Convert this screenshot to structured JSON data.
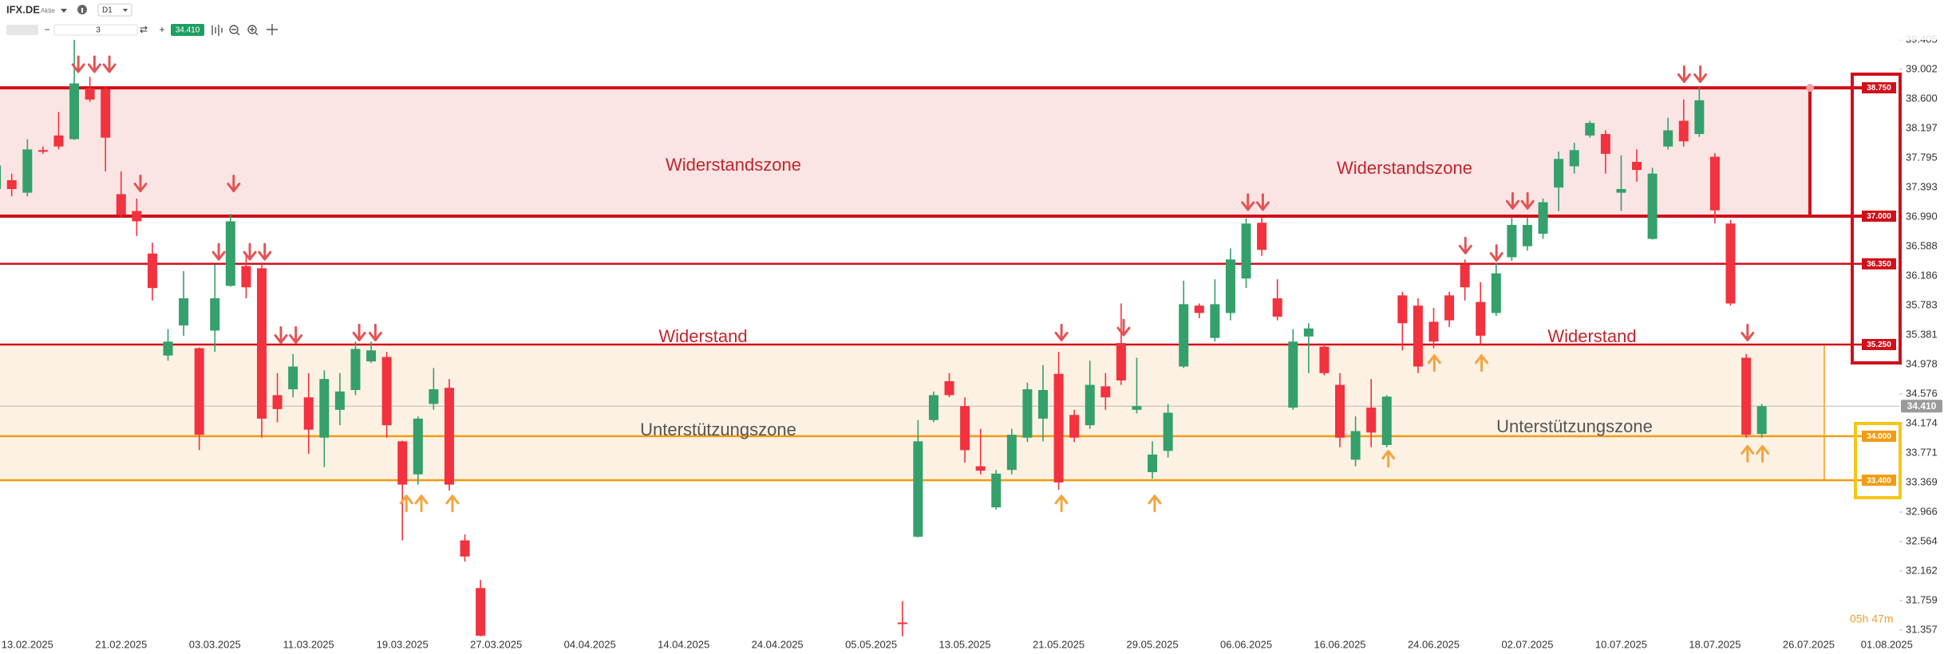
{
  "header": {
    "symbol": "IFX.DE",
    "type": "Aktie",
    "timeframe": "D1",
    "quantity": "3",
    "price": "34.410",
    "timer": "05h 47m"
  },
  "chart_data": {
    "type": "candlestick",
    "up_color": "#34a06b",
    "down_color": "#f2323e",
    "ylim": [
      31.27,
      39.947
    ],
    "yticks": [
      39.405,
      39.002,
      {
        "value": 38.6,
        "label": "38.600"
      },
      38.197,
      37.795,
      37.393,
      {
        "value": 36.99,
        "label": "36.990"
      },
      36.588,
      36.186,
      35.783,
      35.381,
      34.978,
      34.576,
      34.174,
      33.771,
      33.369,
      32.966,
      32.564,
      32.162,
      31.759,
      31.357
    ],
    "categories": [
      null,
      null,
      "13.02.2025",
      null,
      null,
      null,
      null,
      null,
      "21.02.2025",
      null,
      null,
      null,
      null,
      null,
      "03.03.2025",
      null,
      null,
      null,
      null,
      null,
      "11.03.2025",
      null,
      null,
      null,
      null,
      null,
      "19.03.2025",
      null,
      null,
      null,
      null,
      null,
      "27.03.2025",
      null,
      null,
      null,
      null,
      null,
      "04.04.2025",
      null,
      null,
      null,
      null,
      null,
      "14.04.2025",
      null,
      null,
      null,
      null,
      null,
      "24.04.2025",
      null,
      null,
      null,
      null,
      null,
      "05.05.2025",
      null,
      null,
      null,
      null,
      null,
      "13.05.2025",
      null,
      null,
      null,
      null,
      null,
      "21.05.2025",
      null,
      null,
      null,
      null,
      null,
      "29.05.2025",
      null,
      null,
      null,
      null,
      null,
      "06.06.2025",
      null,
      null,
      null,
      null,
      null,
      "16.06.2025",
      null,
      null,
      null,
      null,
      null,
      "24.06.2025",
      null,
      null,
      null,
      null,
      null,
      "02.07.2025",
      null,
      null,
      null,
      null,
      null,
      "10.07.2025",
      null,
      null,
      null,
      null,
      null,
      "18.07.2025",
      null,
      null,
      null,
      null,
      null,
      "26.07.2025",
      null,
      null,
      null,
      null,
      "01.08.2025"
    ],
    "open": [
      37.37,
      37.49,
      37.32,
      37.9,
      38.1,
      38.05,
      38.74,
      38.73,
      37.3,
      37.07,
      36.49,
      35.1,
      35.51,
      35.2,
      35.44,
      36.05,
      36.32,
      36.29,
      34.56,
      34.64,
      34.53,
      33.98,
      34.36,
      34.63,
      35.02,
      35.08,
      33.93,
      33.48,
      34.44,
      34.66,
      32.58,
      31.93,
      null,
      null,
      null,
      null,
      null,
      null,
      null,
      null,
      null,
      null,
      null,
      null,
      null,
      null,
      null,
      null,
      null,
      null,
      null,
      null,
      null,
      null,
      null,
      null,
      null,
      null,
      31.46,
      32.63,
      34.22,
      34.75,
      34.41,
      33.59,
      33.03,
      33.54,
      33.98,
      34.24,
      34.85,
      34.29,
      34.15,
      34.68,
      35.27,
      34.36,
      33.51,
      33.8,
      34.95,
      35.78,
      35.34,
      35.68,
      36.15,
      36.91,
      35.88,
      34.39,
      35.36,
      35.22,
      34.7,
      33.68,
      34.39,
      33.88,
      35.92,
      35.78,
      35.56,
      35.92,
      36.34,
      35.83,
      35.68,
      36.44,
      36.59,
      36.76,
      37.39,
      37.68,
      38.1,
      38.12,
      37.32,
      37.74,
      36.69,
      37.95,
      38.3,
      38.12,
      37.81,
      36.9,
      35.07,
      34.03,
      null,
      null,
      null,
      null,
      null,
      null,
      null,
      null
    ],
    "high": [
      37.91,
      37.58,
      38.05,
      37.95,
      38.42,
      39.41,
      38.9,
      38.76,
      37.61,
      37.24,
      36.64,
      35.46,
      36.25,
      35.21,
      36.34,
      37.03,
      36.47,
      36.37,
      34.86,
      35.12,
      34.86,
      34.9,
      34.86,
      35.29,
      35.29,
      35.15,
      33.94,
      34.27,
      34.93,
      34.78,
      32.66,
      32.04,
      null,
      null,
      null,
      null,
      null,
      null,
      null,
      null,
      null,
      null,
      null,
      null,
      null,
      null,
      null,
      null,
      null,
      null,
      null,
      null,
      null,
      null,
      null,
      null,
      null,
      null,
      31.75,
      34.22,
      34.61,
      34.86,
      34.53,
      34.1,
      33.54,
      34.1,
      34.73,
      34.97,
      35.15,
      34.36,
      35.03,
      34.86,
      35.81,
      35.07,
      33.93,
      34.44,
      36.12,
      35.81,
      36.14,
      36.56,
      36.97,
      36.98,
      36.14,
      35.46,
      35.54,
      35.25,
      34.86,
      34.27,
      34.78,
      34.56,
      35.97,
      35.88,
      35.75,
      35.97,
      36.41,
      36.1,
      36.36,
      36.98,
      36.98,
      37.24,
      37.88,
      38.0,
      38.3,
      38.17,
      37.83,
      37.91,
      37.66,
      38.34,
      38.59,
      38.76,
      37.86,
      36.95,
      35.12,
      34.44,
      null,
      null,
      null,
      null,
      null,
      null,
      null,
      null
    ],
    "low": [
      37.27,
      37.27,
      37.27,
      37.85,
      37.91,
      38.04,
      38.56,
      37.61,
      36.98,
      36.73,
      35.85,
      35.03,
      35.37,
      33.81,
      35.15,
      36.04,
      35.88,
      33.98,
      34.19,
      34.53,
      33.76,
      33.58,
      34.15,
      34.56,
      35.0,
      33.98,
      32.58,
      33.34,
      34.36,
      33.26,
      32.29,
      31.27,
      null,
      null,
      null,
      null,
      null,
      null,
      null,
      null,
      null,
      null,
      null,
      null,
      null,
      null,
      null,
      null,
      null,
      null,
      null,
      null,
      null,
      null,
      null,
      null,
      null,
      null,
      31.27,
      32.62,
      34.19,
      34.53,
      33.64,
      33.48,
      33.0,
      33.48,
      33.92,
      33.93,
      33.27,
      33.92,
      34.1,
      34.36,
      34.7,
      34.31,
      33.42,
      33.71,
      34.93,
      35.61,
      35.29,
      35.58,
      36.02,
      36.46,
      35.58,
      34.36,
      34.86,
      34.83,
      33.85,
      33.59,
      33.85,
      33.85,
      35.17,
      34.86,
      35.2,
      35.49,
      35.85,
      35.25,
      35.64,
      36.39,
      36.53,
      36.69,
      37.07,
      37.58,
      38.07,
      37.58,
      37.07,
      37.47,
      36.68,
      37.91,
      37.95,
      38.08,
      36.9,
      35.78,
      33.98,
      33.98,
      null,
      null,
      null,
      null,
      null,
      null,
      null,
      null
    ],
    "close": [
      37.69,
      37.37,
      37.91,
      37.89,
      37.95,
      38.81,
      38.59,
      38.07,
      37.02,
      36.93,
      36.02,
      35.29,
      35.88,
      34.02,
      35.88,
      36.93,
      36.03,
      34.24,
      34.37,
      34.95,
      34.09,
      34.78,
      34.61,
      35.19,
      35.17,
      34.15,
      33.34,
      34.24,
      34.64,
      33.34,
      32.36,
      31.28,
      null,
      null,
      null,
      null,
      null,
      null,
      null,
      null,
      null,
      null,
      null,
      null,
      null,
      null,
      null,
      null,
      null,
      null,
      null,
      null,
      null,
      null,
      null,
      null,
      null,
      null,
      31.46,
      33.93,
      34.56,
      34.56,
      33.81,
      33.53,
      33.49,
      34.02,
      34.64,
      34.63,
      33.37,
      33.98,
      34.7,
      34.53,
      34.76,
      34.41,
      33.75,
      34.32,
      35.8,
      35.68,
      35.8,
      36.41,
      36.9,
      36.54,
      35.63,
      35.29,
      35.47,
      34.86,
      33.98,
      34.07,
      34.05,
      34.54,
      35.54,
      34.95,
      35.29,
      35.58,
      36.03,
      35.37,
      36.22,
      36.88,
      36.88,
      37.19,
      37.78,
      37.9,
      38.27,
      37.85,
      37.37,
      37.63,
      37.58,
      38.17,
      38.02,
      38.58,
      37.08,
      35.81,
      34.02,
      34.41,
      null,
      null,
      null,
      null,
      null,
      null,
      null,
      null
    ],
    "levels": [
      {
        "value": 38.75,
        "label": "38.750",
        "color": "#d0101a"
      },
      {
        "value": 37.0,
        "label": "37.000",
        "color": "#d0101a"
      },
      {
        "value": 36.35,
        "label": "36.350",
        "color": "#d0101a"
      },
      {
        "value": 35.25,
        "label": "35.250",
        "color": "#d0101a"
      },
      {
        "value": 34.0,
        "label": "34.000",
        "color": "#f39c12"
      },
      {
        "value": 33.4,
        "label": "33.400",
        "color": "#f39c12"
      }
    ],
    "zone_colors": [
      "#fbe4e4",
      "#fdf1e3"
    ],
    "last_price": {
      "value": 34.41,
      "label": "34.410",
      "color": "#9a9a9a"
    },
    "annotations": [
      "Widerstandszone",
      "Widerstandszone",
      "Widerstand",
      "Widerstand",
      "Unterstützungszone",
      "Unterstützungszone"
    ]
  }
}
